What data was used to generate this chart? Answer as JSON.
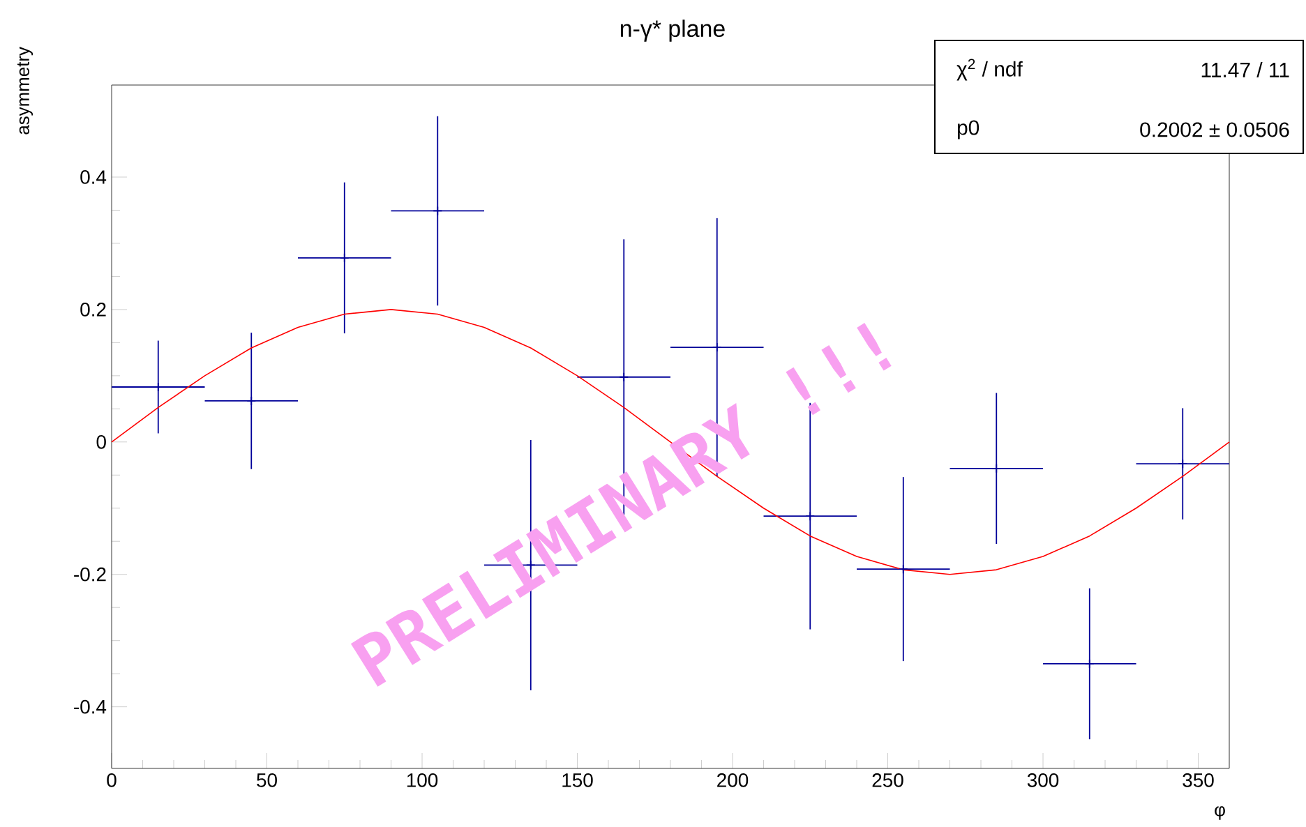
{
  "chart_data": {
    "type": "scatter",
    "title": "n-γ* plane",
    "xlabel": "φ",
    "ylabel": "asymmetry",
    "xlim": [
      0,
      360
    ],
    "ylim": [
      -0.493,
      0.539
    ],
    "xticks": [
      0,
      50,
      100,
      150,
      200,
      250,
      300,
      350
    ],
    "yticks": [
      -0.4,
      -0.2,
      0,
      0.2,
      0.4
    ],
    "grid": false,
    "annotations": [
      "χ$^{2}$ / ndf",
      "11.47 / 11",
      "p0",
      "0.2002 ± 0.0506",
      "PRELIMINARY !!!"
    ],
    "series": [
      {
        "type": "scatter",
        "marker": "cross",
        "color": "#000099",
        "x": [
          15,
          45,
          75,
          105,
          135,
          165,
          195,
          225,
          255,
          285,
          315,
          345
        ],
        "values": [
          0.083,
          0.062,
          0.278,
          0.349,
          -0.186,
          0.098,
          0.143,
          -0.112,
          -0.192,
          -0.04,
          -0.335,
          -0.033
        ],
        "errors": [
          0.07,
          0.103,
          0.114,
          0.143,
          0.189,
          0.208,
          0.195,
          0.171,
          0.139,
          0.114,
          0.114,
          0.084
        ],
        "xerrors": [
          15,
          15,
          15,
          15,
          15,
          15,
          15,
          15,
          15,
          15,
          15,
          15
        ]
      },
      {
        "type": "line",
        "marker": "none",
        "color": "#ff0000",
        "x": [
          0,
          15,
          30,
          45,
          60,
          75,
          90,
          105,
          120,
          135,
          150,
          165,
          180,
          195,
          210,
          225,
          240,
          255,
          270,
          285,
          300,
          315,
          330,
          345,
          360
        ],
        "values": [
          0,
          0.052,
          0.1,
          0.142,
          0.173,
          0.193,
          0.2,
          0.193,
          0.173,
          0.142,
          0.1,
          0.052,
          0,
          -0.052,
          -0.1,
          -0.142,
          -0.173,
          -0.193,
          -0.2,
          -0.193,
          -0.173,
          -0.142,
          -0.1,
          -0.052,
          0
        ]
      }
    ]
  }
}
